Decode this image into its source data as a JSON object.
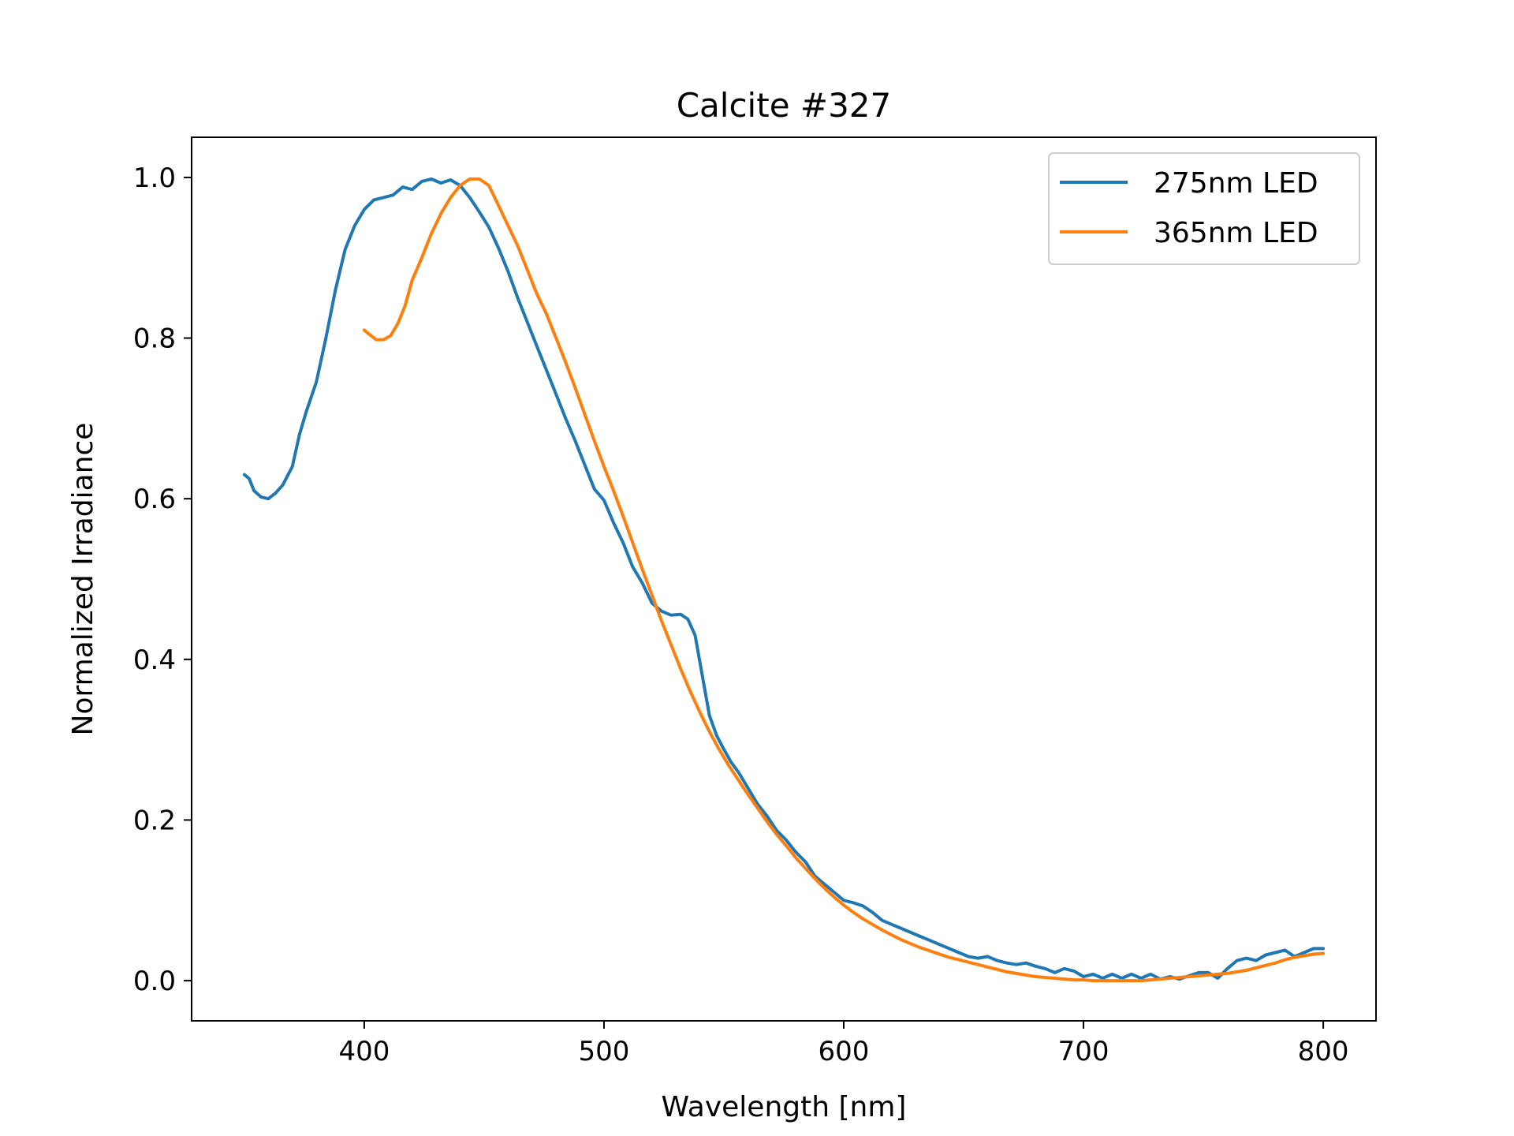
{
  "chart_data": {
    "type": "line",
    "title": "Calcite #327",
    "xlabel": "Wavelength [nm]",
    "ylabel": "Normalized Irradiance",
    "xlim": [
      328,
      822
    ],
    "ylim": [
      -0.05,
      1.05
    ],
    "xticks": [
      400,
      500,
      600,
      700,
      800
    ],
    "yticks": [
      0.0,
      0.2,
      0.4,
      0.6,
      0.8,
      1.0
    ],
    "xtick_labels": [
      "400",
      "500",
      "600",
      "700",
      "800"
    ],
    "ytick_labels": [
      "0.0",
      "0.2",
      "0.4",
      "0.6",
      "0.8",
      "1.0"
    ],
    "grid": false,
    "legend_position": "top-right",
    "series": [
      {
        "name": "275nm LED",
        "color": "#1f77b4",
        "points": [
          [
            350,
            0.63
          ],
          [
            352,
            0.625
          ],
          [
            354,
            0.61
          ],
          [
            357,
            0.602
          ],
          [
            360,
            0.6
          ],
          [
            363,
            0.607
          ],
          [
            366,
            0.617
          ],
          [
            370,
            0.64
          ],
          [
            373,
            0.68
          ],
          [
            376,
            0.71
          ],
          [
            380,
            0.745
          ],
          [
            384,
            0.8
          ],
          [
            388,
            0.86
          ],
          [
            392,
            0.91
          ],
          [
            396,
            0.94
          ],
          [
            400,
            0.96
          ],
          [
            404,
            0.972
          ],
          [
            408,
            0.975
          ],
          [
            412,
            0.978
          ],
          [
            416,
            0.988
          ],
          [
            420,
            0.985
          ],
          [
            424,
            0.995
          ],
          [
            428,
            0.998
          ],
          [
            432,
            0.993
          ],
          [
            436,
            0.997
          ],
          [
            440,
            0.99
          ],
          [
            444,
            0.975
          ],
          [
            448,
            0.957
          ],
          [
            452,
            0.938
          ],
          [
            456,
            0.912
          ],
          [
            460,
            0.883
          ],
          [
            464,
            0.85
          ],
          [
            468,
            0.82
          ],
          [
            472,
            0.79
          ],
          [
            476,
            0.76
          ],
          [
            480,
            0.73
          ],
          [
            484,
            0.7
          ],
          [
            488,
            0.672
          ],
          [
            492,
            0.642
          ],
          [
            496,
            0.612
          ],
          [
            500,
            0.598
          ],
          [
            504,
            0.57
          ],
          [
            508,
            0.545
          ],
          [
            512,
            0.515
          ],
          [
            516,
            0.495
          ],
          [
            520,
            0.47
          ],
          [
            524,
            0.46
          ],
          [
            528,
            0.455
          ],
          [
            532,
            0.456
          ],
          [
            535,
            0.45
          ],
          [
            538,
            0.43
          ],
          [
            541,
            0.38
          ],
          [
            544,
            0.33
          ],
          [
            547,
            0.305
          ],
          [
            550,
            0.288
          ],
          [
            553,
            0.272
          ],
          [
            556,
            0.26
          ],
          [
            560,
            0.24
          ],
          [
            564,
            0.22
          ],
          [
            568,
            0.205
          ],
          [
            572,
            0.187
          ],
          [
            576,
            0.175
          ],
          [
            580,
            0.16
          ],
          [
            584,
            0.148
          ],
          [
            588,
            0.13
          ],
          [
            592,
            0.12
          ],
          [
            596,
            0.11
          ],
          [
            600,
            0.1
          ],
          [
            604,
            0.097
          ],
          [
            608,
            0.093
          ],
          [
            612,
            0.085
          ],
          [
            616,
            0.075
          ],
          [
            620,
            0.07
          ],
          [
            624,
            0.065
          ],
          [
            628,
            0.06
          ],
          [
            632,
            0.055
          ],
          [
            636,
            0.05
          ],
          [
            640,
            0.045
          ],
          [
            644,
            0.04
          ],
          [
            648,
            0.035
          ],
          [
            652,
            0.03
          ],
          [
            656,
            0.028
          ],
          [
            660,
            0.03
          ],
          [
            664,
            0.025
          ],
          [
            668,
            0.022
          ],
          [
            672,
            0.02
          ],
          [
            676,
            0.022
          ],
          [
            680,
            0.018
          ],
          [
            684,
            0.015
          ],
          [
            688,
            0.01
          ],
          [
            692,
            0.015
          ],
          [
            696,
            0.012
          ],
          [
            700,
            0.005
          ],
          [
            704,
            0.008
          ],
          [
            708,
            0.003
          ],
          [
            712,
            0.008
          ],
          [
            716,
            0.003
          ],
          [
            720,
            0.008
          ],
          [
            724,
            0.003
          ],
          [
            728,
            0.008
          ],
          [
            732,
            0.002
          ],
          [
            736,
            0.005
          ],
          [
            740,
            0.002
          ],
          [
            744,
            0.006
          ],
          [
            748,
            0.01
          ],
          [
            752,
            0.01
          ],
          [
            756,
            0.003
          ],
          [
            760,
            0.015
          ],
          [
            764,
            0.025
          ],
          [
            768,
            0.028
          ],
          [
            772,
            0.025
          ],
          [
            776,
            0.032
          ],
          [
            780,
            0.035
          ],
          [
            784,
            0.038
          ],
          [
            788,
            0.03
          ],
          [
            792,
            0.035
          ],
          [
            796,
            0.04
          ],
          [
            800,
            0.04
          ]
        ]
      },
      {
        "name": "365nm LED",
        "color": "#ff7f0e",
        "points": [
          [
            400,
            0.81
          ],
          [
            402,
            0.805
          ],
          [
            405,
            0.798
          ],
          [
            408,
            0.798
          ],
          [
            411,
            0.803
          ],
          [
            414,
            0.818
          ],
          [
            417,
            0.84
          ],
          [
            420,
            0.872
          ],
          [
            424,
            0.9
          ],
          [
            428,
            0.93
          ],
          [
            432,
            0.955
          ],
          [
            436,
            0.975
          ],
          [
            440,
            0.99
          ],
          [
            444,
            0.998
          ],
          [
            448,
            0.998
          ],
          [
            452,
            0.99
          ],
          [
            456,
            0.965
          ],
          [
            460,
            0.94
          ],
          [
            464,
            0.915
          ],
          [
            468,
            0.885
          ],
          [
            472,
            0.855
          ],
          [
            476,
            0.83
          ],
          [
            480,
            0.8
          ],
          [
            484,
            0.77
          ],
          [
            488,
            0.738
          ],
          [
            492,
            0.705
          ],
          [
            496,
            0.672
          ],
          [
            500,
            0.64
          ],
          [
            504,
            0.61
          ],
          [
            508,
            0.578
          ],
          [
            512,
            0.545
          ],
          [
            516,
            0.512
          ],
          [
            520,
            0.48
          ],
          [
            524,
            0.448
          ],
          [
            528,
            0.418
          ],
          [
            532,
            0.388
          ],
          [
            536,
            0.36
          ],
          [
            540,
            0.334
          ],
          [
            544,
            0.31
          ],
          [
            548,
            0.288
          ],
          [
            552,
            0.268
          ],
          [
            556,
            0.25
          ],
          [
            560,
            0.232
          ],
          [
            564,
            0.215
          ],
          [
            568,
            0.198
          ],
          [
            572,
            0.182
          ],
          [
            576,
            0.168
          ],
          [
            580,
            0.153
          ],
          [
            584,
            0.14
          ],
          [
            588,
            0.127
          ],
          [
            592,
            0.115
          ],
          [
            596,
            0.104
          ],
          [
            600,
            0.094
          ],
          [
            604,
            0.085
          ],
          [
            608,
            0.077
          ],
          [
            612,
            0.07
          ],
          [
            616,
            0.063
          ],
          [
            620,
            0.057
          ],
          [
            624,
            0.051
          ],
          [
            628,
            0.046
          ],
          [
            632,
            0.041
          ],
          [
            636,
            0.037
          ],
          [
            640,
            0.033
          ],
          [
            644,
            0.029
          ],
          [
            648,
            0.026
          ],
          [
            652,
            0.023
          ],
          [
            656,
            0.02
          ],
          [
            660,
            0.017
          ],
          [
            664,
            0.014
          ],
          [
            668,
            0.011
          ],
          [
            672,
            0.009
          ],
          [
            676,
            0.007
          ],
          [
            680,
            0.005
          ],
          [
            684,
            0.004
          ],
          [
            688,
            0.003
          ],
          [
            692,
            0.002
          ],
          [
            696,
            0.001
          ],
          [
            700,
            0.001
          ],
          [
            704,
            0.0
          ],
          [
            708,
            0.0
          ],
          [
            712,
            0.0
          ],
          [
            716,
            0.0
          ],
          [
            720,
            0.0
          ],
          [
            724,
            0.0
          ],
          [
            728,
            0.001
          ],
          [
            732,
            0.002
          ],
          [
            736,
            0.003
          ],
          [
            740,
            0.004
          ],
          [
            744,
            0.005
          ],
          [
            748,
            0.006
          ],
          [
            752,
            0.007
          ],
          [
            756,
            0.008
          ],
          [
            760,
            0.009
          ],
          [
            764,
            0.011
          ],
          [
            768,
            0.013
          ],
          [
            772,
            0.016
          ],
          [
            776,
            0.019
          ],
          [
            780,
            0.022
          ],
          [
            784,
            0.026
          ],
          [
            788,
            0.029
          ],
          [
            792,
            0.031
          ],
          [
            796,
            0.033
          ],
          [
            800,
            0.034
          ]
        ]
      }
    ]
  }
}
